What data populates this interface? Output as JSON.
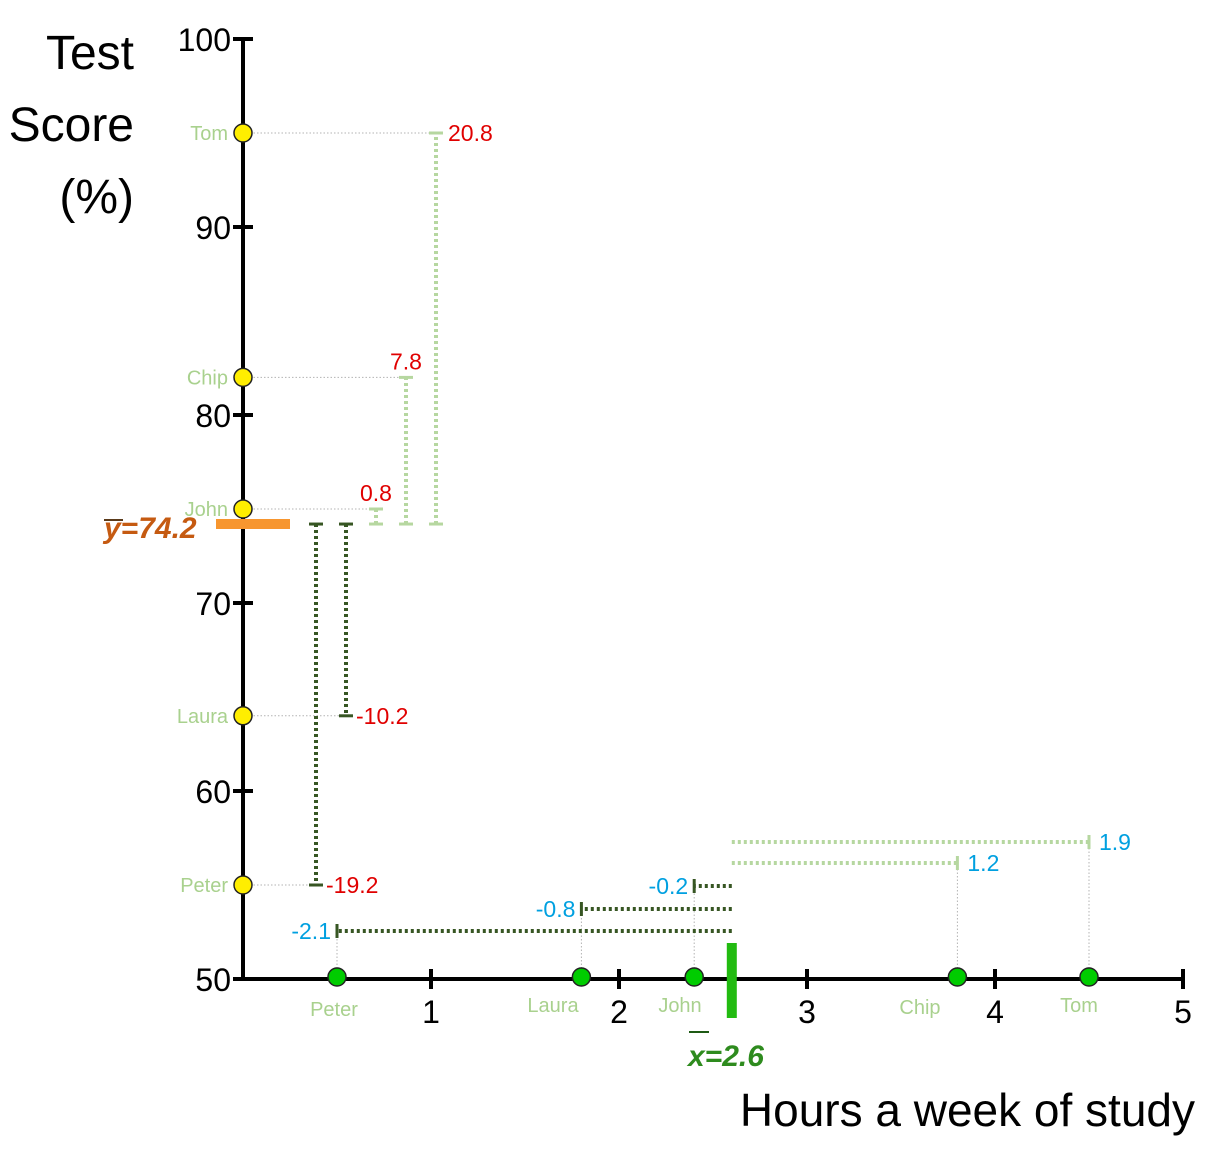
{
  "chart_data": {
    "type": "scatter",
    "ylabel_lines": [
      "Test",
      "Score",
      "(%)"
    ],
    "xlabel": "Hours a week of study",
    "ylim": [
      50,
      100
    ],
    "xlim": [
      0,
      5
    ],
    "yticks": [
      "50",
      "60",
      "70",
      "80",
      "90",
      "100"
    ],
    "xticks": [
      "1",
      "2",
      "3",
      "4",
      "5"
    ],
    "names": [
      "Peter",
      "Laura",
      "John",
      "Chip",
      "Tom"
    ],
    "x": [
      0.5,
      1.8,
      2.4,
      3.8,
      4.5
    ],
    "y": [
      55,
      64,
      75,
      82,
      95
    ],
    "y_mean": 74.2,
    "x_mean": 2.6,
    "y_mean_label": "y=74.2",
    "x_mean_label": "x=2.6",
    "y_deviation_labels": [
      "-19.2",
      "-10.2",
      "0.8",
      "7.8",
      "20.8"
    ],
    "x_deviation_labels": [
      "-2.1",
      "-0.8",
      "-0.2",
      "1.2",
      "1.9"
    ],
    "colors": {
      "y_points": "#ffee00",
      "x_points": "#00cc00",
      "names": "#a9d18e",
      "positive_dev": "#b6d7a0",
      "negative_dev": "#375623",
      "y_dev_text": "#e00000",
      "x_dev_text": "#00a0e0",
      "y_mean": "#f7962f",
      "y_mean_text": "#c55a11",
      "x_mean": "#22bb11",
      "x_mean_text": "#2e8b1e"
    }
  }
}
